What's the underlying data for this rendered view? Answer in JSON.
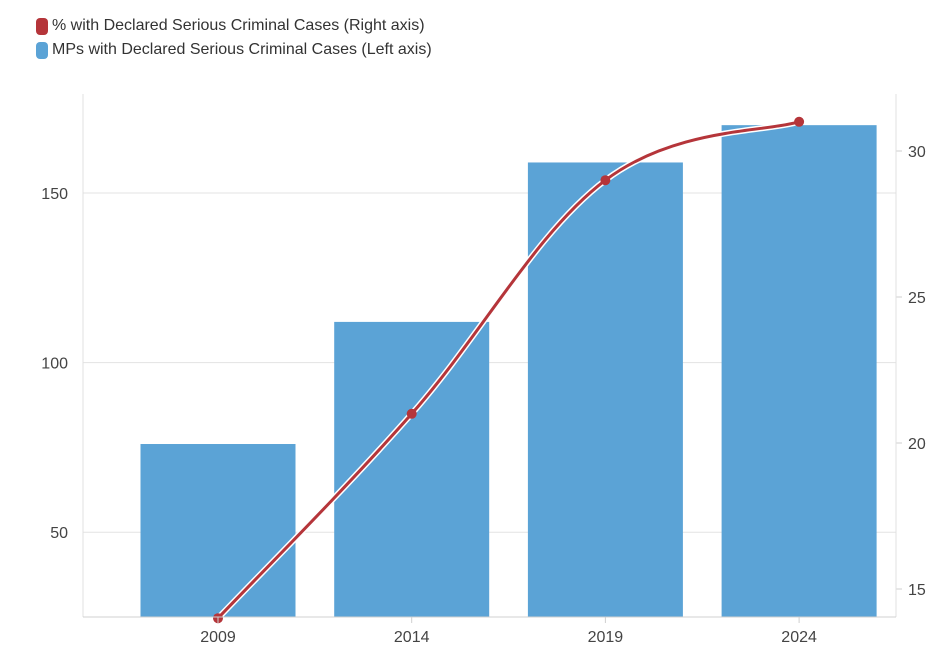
{
  "chart_data": {
    "type": "bar",
    "categories": [
      "2009",
      "2014",
      "2019",
      "2024"
    ],
    "series": [
      {
        "name": "MPs with Declared Serious Criminal Cases (Left axis)",
        "kind": "bar",
        "axis": "left",
        "color": "#5ba3d6",
        "values": [
          76,
          112,
          159,
          170
        ]
      },
      {
        "name": "% with Declared Serious Criminal Cases (Right axis)",
        "kind": "line",
        "axis": "right",
        "color": "#b5353a",
        "values": [
          14,
          21,
          29,
          31
        ]
      }
    ],
    "left_axis": {
      "ticks": [
        "50",
        "100",
        "150"
      ],
      "range": [
        25,
        180
      ]
    },
    "right_axis": {
      "ticks": [
        "15",
        "20",
        "25",
        "30"
      ],
      "range": [
        14,
        32
      ]
    },
    "grid": true,
    "legend_position": "top-left"
  }
}
